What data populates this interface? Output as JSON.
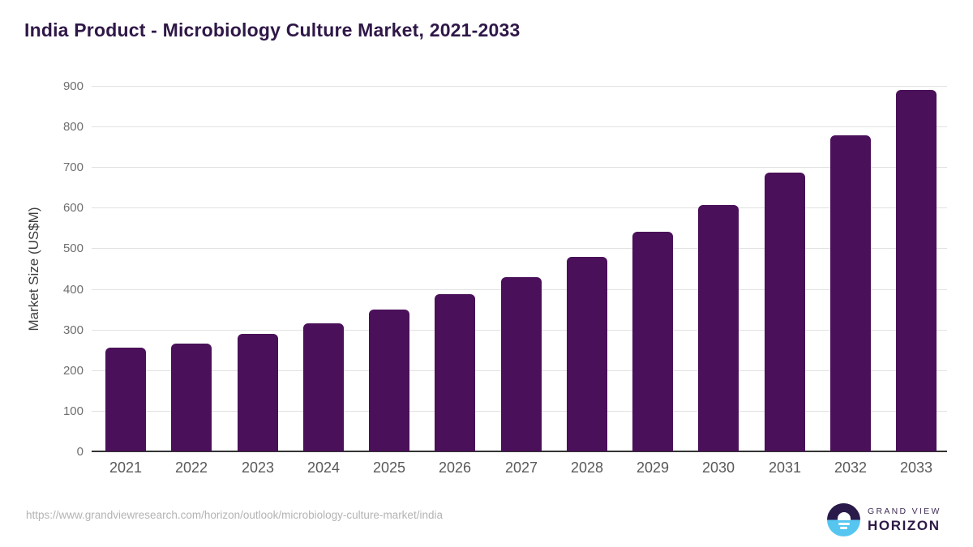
{
  "title": "India Product - Microbiology Culture Market, 2021-2033",
  "chart_data": {
    "type": "bar",
    "categories": [
      "2021",
      "2022",
      "2023",
      "2024",
      "2025",
      "2026",
      "2027",
      "2028",
      "2029",
      "2030",
      "2031",
      "2032",
      "2033"
    ],
    "values": [
      255,
      266,
      289,
      315,
      350,
      387,
      430,
      478,
      540,
      606,
      687,
      779,
      890
    ],
    "title": "India Product - Microbiology Culture Market, 2021-2033",
    "xlabel": "",
    "ylabel": "Market Size (US$M)",
    "ylim": [
      0,
      900
    ],
    "ytick_interval": 100,
    "yticks": [
      0,
      100,
      200,
      300,
      400,
      500,
      600,
      700,
      800,
      900
    ],
    "grid": true,
    "legend": "none",
    "bar_color": "#4a1059"
  },
  "colors": {
    "title": "#2f1747",
    "bar": "#4a1059",
    "gridline": "#e2e2e2",
    "axis_line": "#333333",
    "tick_label": "#6e6e6e",
    "x_label": "#58595b",
    "url_text": "#b3b3b3",
    "logo_dark": "#2a1a4a",
    "logo_blue": "#56c6f0"
  },
  "footer": {
    "source_url": "https://www.grandviewresearch.com/horizon/outlook/microbiology-culture-market/india"
  },
  "logo": {
    "line1": "GRAND VIEW",
    "line2": "HORIZON"
  }
}
